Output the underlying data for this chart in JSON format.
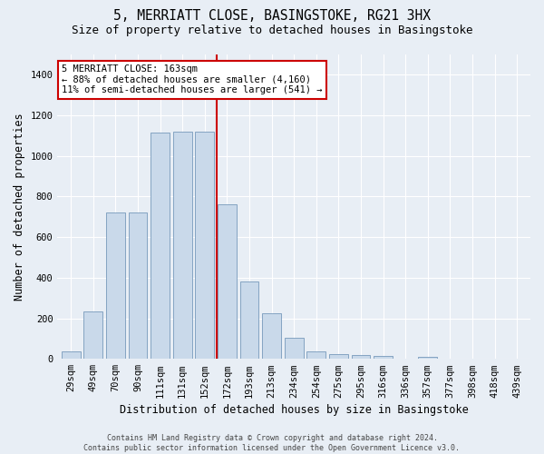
{
  "title": "5, MERRIATT CLOSE, BASINGSTOKE, RG21 3HX",
  "subtitle": "Size of property relative to detached houses in Basingstoke",
  "xlabel": "Distribution of detached houses by size in Basingstoke",
  "ylabel": "Number of detached properties",
  "categories": [
    "29sqm",
    "49sqm",
    "70sqm",
    "90sqm",
    "111sqm",
    "131sqm",
    "152sqm",
    "172sqm",
    "193sqm",
    "213sqm",
    "234sqm",
    "254sqm",
    "275sqm",
    "295sqm",
    "316sqm",
    "336sqm",
    "357sqm",
    "377sqm",
    "398sqm",
    "418sqm",
    "439sqm"
  ],
  "values": [
    35,
    235,
    720,
    720,
    1115,
    1120,
    1120,
    760,
    380,
    225,
    105,
    35,
    25,
    20,
    15,
    0,
    10,
    0,
    0,
    0,
    0
  ],
  "bar_color": "#c9d9ea",
  "bar_edge_color": "#7799bb",
  "vline_x": 6.55,
  "vline_color": "#cc0000",
  "annotation_text": "5 MERRIATT CLOSE: 163sqm\n← 88% of detached houses are smaller (4,160)\n11% of semi-detached houses are larger (541) →",
  "annotation_box_facecolor": "#ffffff",
  "annotation_box_edgecolor": "#cc0000",
  "ylim": [
    0,
    1500
  ],
  "yticks": [
    0,
    200,
    400,
    600,
    800,
    1000,
    1200,
    1400
  ],
  "bg_color": "#e8eef5",
  "grid_color": "#ffffff",
  "title_fontsize": 10.5,
  "subtitle_fontsize": 9,
  "xlabel_fontsize": 8.5,
  "ylabel_fontsize": 8.5,
  "tick_fontsize": 7.5,
  "annot_fontsize": 7.5,
  "footer_fontsize": 6,
  "footer": "Contains HM Land Registry data © Crown copyright and database right 2024.\nContains public sector information licensed under the Open Government Licence v3.0."
}
